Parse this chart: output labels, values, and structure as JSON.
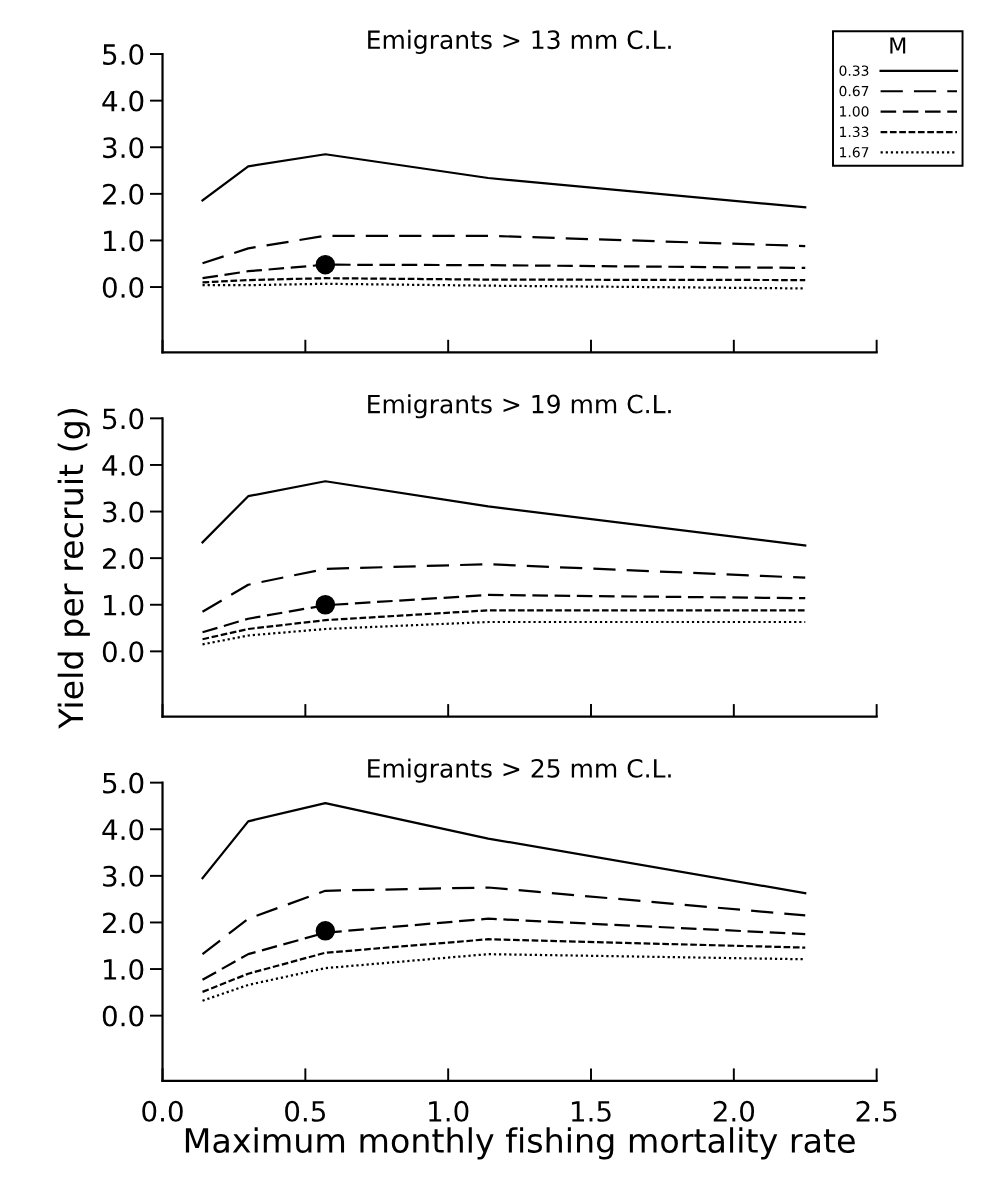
{
  "chart_data": [
    {
      "type": "line",
      "title": "Emigrants > 13 mm C.L.",
      "legend_title": "M",
      "legend": "top right",
      "tick_labels": "y",
      "xlim": [
        0,
        2.5
      ],
      "xticks": [
        0,
        0.5,
        1,
        1.5,
        2,
        2.5
      ],
      "ylim": [
        -1.4,
        5.0
      ],
      "yticks": [
        {
          "value": 0,
          "label": "0.0"
        },
        {
          "value": 1,
          "label": "1.0"
        },
        {
          "value": 2,
          "label": "2.0"
        },
        {
          "value": 3,
          "label": "3.0"
        },
        {
          "value": 4,
          "label": "4.0"
        },
        {
          "value": 5,
          "label": "5.0"
        }
      ],
      "x": [
        0.14,
        0.3,
        0.57,
        1.14,
        2.25
      ],
      "series": [
        {
          "name": "0.33",
          "color": "#000000",
          "line_style": "solid",
          "values": [
            1.86,
            2.59,
            2.85,
            2.34,
            1.71
          ]
        },
        {
          "name": "0.67",
          "color": "#000000",
          "line_style": "long dashed",
          "values": [
            0.51,
            0.83,
            1.1,
            1.1,
            0.88
          ]
        },
        {
          "name": "1.00",
          "color": "#000000",
          "line_style": "dashed",
          "values": [
            0.19,
            0.34,
            0.48,
            0.47,
            0.41
          ]
        },
        {
          "name": "1.33",
          "color": "#000000",
          "line_style": "short dashed",
          "values": [
            0.1,
            0.15,
            0.19,
            0.16,
            0.15
          ]
        },
        {
          "name": "1.67",
          "color": "#000000",
          "line_style": "dotted",
          "values": [
            0.04,
            0.04,
            0.07,
            0.03,
            -0.03
          ]
        },
        {
          "type": "scatter",
          "color": "#000000",
          "marker": "circle",
          "values": [
            null,
            null,
            0.48,
            null,
            null
          ]
        }
      ]
    },
    {
      "type": "line",
      "title": "Emigrants > 19 mm C.L.",
      "ylabel": "Yield per recruit (g)",
      "tick_labels": "y",
      "xlim": [
        0,
        2.5
      ],
      "xticks": [
        0,
        0.5,
        1,
        1.5,
        2,
        2.5
      ],
      "ylim": [
        -1.4,
        5.0
      ],
      "yticks": [
        {
          "value": 0,
          "label": "0.0"
        },
        {
          "value": 1,
          "label": "1.0"
        },
        {
          "value": 2,
          "label": "2.0"
        },
        {
          "value": 3,
          "label": "3.0"
        },
        {
          "value": 4,
          "label": "4.0"
        },
        {
          "value": 5,
          "label": "5.0"
        }
      ],
      "x": [
        0.14,
        0.3,
        0.57,
        1.14,
        2.25
      ],
      "series": [
        {
          "color": "#000000",
          "line_style": "solid",
          "values": [
            2.34,
            3.33,
            3.65,
            3.11,
            2.27
          ]
        },
        {
          "color": "#000000",
          "line_style": "long dashed",
          "values": [
            0.85,
            1.43,
            1.77,
            1.87,
            1.58
          ]
        },
        {
          "color": "#000000",
          "line_style": "dashed",
          "values": [
            0.41,
            0.7,
            0.99,
            1.21,
            1.14
          ]
        },
        {
          "color": "#000000",
          "line_style": "short dashed",
          "values": [
            0.26,
            0.48,
            0.67,
            0.88,
            0.88
          ]
        },
        {
          "color": "#000000",
          "line_style": "dotted",
          "values": [
            0.15,
            0.34,
            0.48,
            0.63,
            0.63
          ]
        },
        {
          "type": "scatter",
          "color": "#000000",
          "marker": "circle",
          "values": [
            null,
            null,
            1.0,
            null,
            null
          ]
        }
      ]
    },
    {
      "type": "line",
      "title": "Emigrants > 25 mm C.L.",
      "xlabel": "Maximum monthly fishing mortality rate",
      "xlim": [
        0,
        2.5
      ],
      "xticks": [
        {
          "value": 0,
          "label": "0.0"
        },
        {
          "value": 0.5,
          "label": "0.5"
        },
        {
          "value": 1,
          "label": "1.0"
        },
        {
          "value": 1.5,
          "label": "1.5"
        },
        {
          "value": 2,
          "label": "2.0"
        },
        {
          "value": 2.5,
          "label": "2.5"
        }
      ],
      "ylim": [
        -1.4,
        5.0
      ],
      "yticks": [
        {
          "value": 0,
          "label": "0.0"
        },
        {
          "value": 1,
          "label": "1.0"
        },
        {
          "value": 2,
          "label": "2.0"
        },
        {
          "value": 3,
          "label": "3.0"
        },
        {
          "value": 4,
          "label": "4.0"
        },
        {
          "value": 5,
          "label": "5.0"
        }
      ],
      "x": [
        0.14,
        0.3,
        0.57,
        1.14,
        2.25
      ],
      "series": [
        {
          "color": "#000000",
          "line_style": "solid",
          "values": [
            2.95,
            4.17,
            4.56,
            3.8,
            2.63
          ]
        },
        {
          "color": "#000000",
          "line_style": "long dashed",
          "values": [
            1.32,
            2.08,
            2.68,
            2.75,
            2.15
          ]
        },
        {
          "color": "#000000",
          "line_style": "dashed",
          "values": [
            0.77,
            1.32,
            1.78,
            2.08,
            1.75
          ]
        },
        {
          "color": "#000000",
          "line_style": "short dashed",
          "values": [
            0.51,
            0.9,
            1.35,
            1.64,
            1.46
          ]
        },
        {
          "color": "#000000",
          "line_style": "dotted",
          "values": [
            0.32,
            0.66,
            1.02,
            1.32,
            1.21
          ]
        },
        {
          "type": "scatter",
          "color": "#000000",
          "marker": "circle",
          "values": [
            null,
            null,
            1.82,
            null,
            null
          ]
        }
      ]
    }
  ]
}
